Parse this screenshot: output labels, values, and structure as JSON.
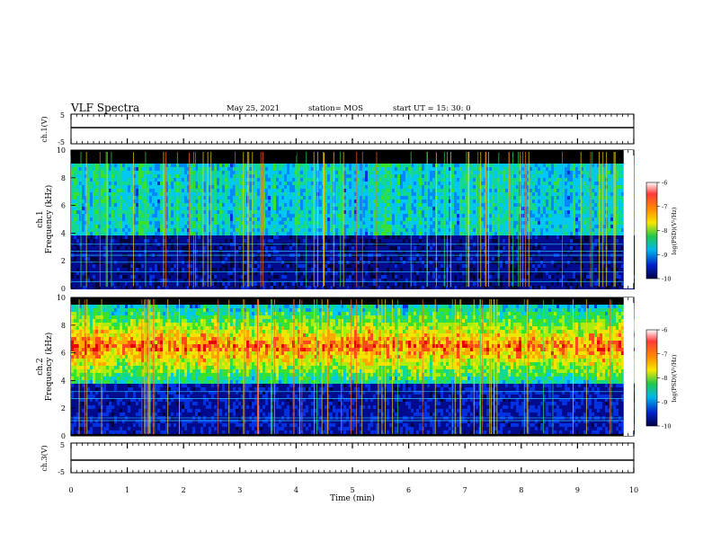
{
  "header": {
    "title": "VLF Spectra",
    "date": "May 25, 2021",
    "station": "station= MOS",
    "start": "start  UT =   15: 30: 0"
  },
  "colorbar_defs": [
    {
      "rgb": "#ffffff"
    }
  ],
  "chart_data": [
    {
      "type": "line",
      "panel": "ch.1 waveform",
      "ylabel": "ch.1(V)",
      "ylim": [
        -5,
        5
      ],
      "yticks": [
        "5",
        "-5"
      ],
      "xlim": [
        0,
        10
      ],
      "series": [
        {
          "values": [
            [
              0,
              0
            ],
            [
              10,
              0
            ]
          ]
        }
      ]
    },
    {
      "type": "heatmap",
      "panel": "ch.1 spectrogram",
      "ylabel": "ch.1\nFrequency (kHz)",
      "ylim": [
        0,
        10
      ],
      "yticks": [
        "0",
        "2",
        "4",
        "6",
        "8",
        "10"
      ],
      "xlim": [
        0,
        10
      ],
      "colorbar": {
        "label": "log(PSD)(V²/Hz)",
        "range": [
          -10,
          -6
        ],
        "ticks": [
          "-6",
          "-7",
          "-8",
          "-9",
          "-10"
        ]
      },
      "band_hi_khz": 9,
      "noise_lines_khz": [
        0.5,
        1.2,
        1.9,
        2.4,
        2.7,
        3.2
      ]
    },
    {
      "type": "heatmap",
      "panel": "ch.2 spectrogram",
      "ylabel": "ch.2\nFrequency (kHz)",
      "ylim": [
        0,
        10
      ],
      "yticks": [
        "0",
        "2",
        "4",
        "6",
        "8",
        "10"
      ],
      "xlim": [
        0,
        10
      ],
      "colorbar": {
        "label": "log(PSD)(V²/Hz)",
        "range": [
          -10,
          -6
        ],
        "ticks": [
          "-6",
          "-7",
          "-8",
          "-9",
          "-10"
        ]
      },
      "band_hi_khz": 9.5,
      "noise_lines_khz": [
        1.1,
        1.3,
        2.7,
        3.2
      ]
    },
    {
      "type": "line",
      "panel": "ch.3 waveform",
      "ylabel": "ch.3(V)",
      "ylim": [
        -5,
        5
      ],
      "yticks": [
        "5",
        "-5"
      ],
      "xlim": [
        0,
        10
      ],
      "xlabel": "Time  (min)",
      "xticks": [
        "0",
        "1",
        "2",
        "3",
        "4",
        "5",
        "6",
        "7",
        "8",
        "9",
        "10"
      ],
      "series": [
        {
          "values": [
            [
              0,
              0
            ],
            [
              10,
              0
            ]
          ]
        }
      ]
    }
  ]
}
